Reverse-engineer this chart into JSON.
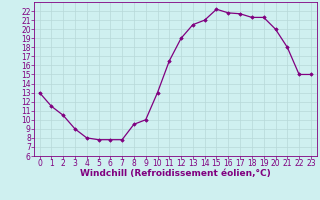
{
  "x": [
    0,
    1,
    2,
    3,
    4,
    5,
    6,
    7,
    8,
    9,
    10,
    11,
    12,
    13,
    14,
    15,
    16,
    17,
    18,
    19,
    20,
    21,
    22,
    23
  ],
  "y": [
    13,
    11.5,
    10.5,
    9,
    8,
    7.8,
    7.8,
    7.8,
    9.5,
    10,
    13,
    16.5,
    19,
    20.5,
    21,
    22.2,
    21.8,
    21.7,
    21.3,
    21.3,
    20,
    18,
    15,
    15
  ],
  "line_color": "#800080",
  "marker": "D",
  "marker_size": 1.8,
  "linewidth": 0.9,
  "xlabel": "Windchill (Refroidissement éolien,°C)",
  "xlim": [
    -0.5,
    23.5
  ],
  "ylim": [
    6,
    23
  ],
  "yticks": [
    6,
    7,
    8,
    9,
    10,
    11,
    12,
    13,
    14,
    15,
    16,
    17,
    18,
    19,
    20,
    21,
    22
  ],
  "xticks": [
    0,
    1,
    2,
    3,
    4,
    5,
    6,
    7,
    8,
    9,
    10,
    11,
    12,
    13,
    14,
    15,
    16,
    17,
    18,
    19,
    20,
    21,
    22,
    23
  ],
  "bg_color": "#cff0f0",
  "grid_color": "#afd8d8",
  "line_grid_color": "#b8d8d8",
  "label_color": "#800080",
  "tick_color": "#800080",
  "xlabel_fontsize": 6.5,
  "tick_fontsize": 5.5
}
